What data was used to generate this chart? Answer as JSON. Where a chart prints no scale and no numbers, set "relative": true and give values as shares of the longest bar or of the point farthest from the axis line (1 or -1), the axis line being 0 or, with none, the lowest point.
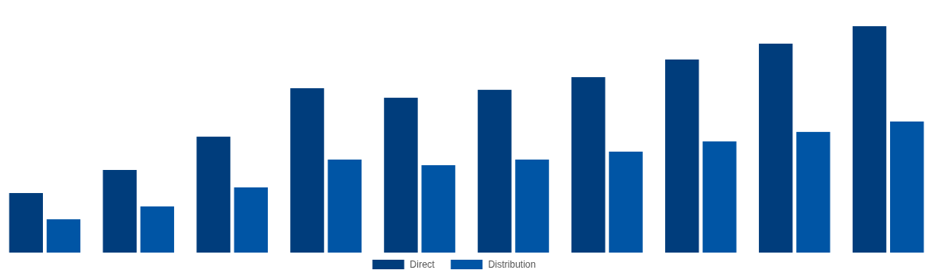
{
  "chart_data": {
    "type": "bar",
    "relative": true,
    "categories": [
      null,
      null,
      null,
      null,
      null,
      null,
      null,
      null,
      null,
      null
    ],
    "legend": "bottom",
    "series": [
      {
        "name": "Direct",
        "color": "#003d7c",
        "values": [
          0.263,
          0.365,
          0.512,
          0.726,
          0.684,
          0.719,
          0.775,
          0.853,
          0.923,
          1
        ]
      },
      {
        "name": "Distribution",
        "color": "#0055a5",
        "values": [
          0.147,
          0.204,
          0.288,
          0.411,
          0.386,
          0.411,
          0.446,
          0.491,
          0.533,
          0.579
        ]
      }
    ]
  }
}
